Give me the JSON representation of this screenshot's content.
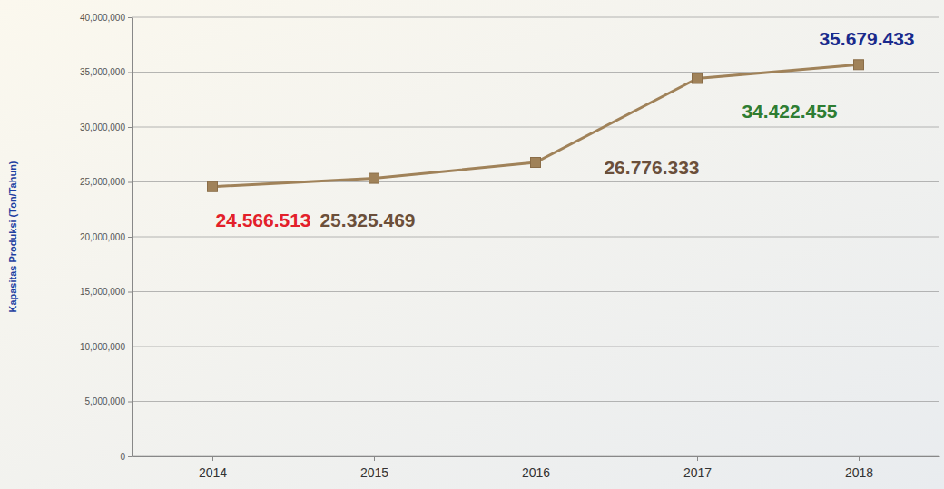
{
  "chart_data": {
    "type": "line",
    "y_label": "Kapasitas Produksi (Ton/Tahun)",
    "categories": [
      "2014",
      "2015",
      "2016",
      "2017",
      "2018"
    ],
    "values": [
      24566513,
      25325469,
      26776333,
      34422455,
      35679433
    ],
    "value_labels": [
      "24.566.513",
      "25.325.469",
      "26.776.333",
      "34.422.455",
      "35.679.433"
    ],
    "color": "#a08259",
    "marker": "square",
    "ylim": [
      0,
      40000000
    ],
    "yticks": [
      0,
      {
        "value": 5000000,
        "label": "5,000,000"
      },
      {
        "value": 10000000,
        "label": "10,000,000"
      },
      {
        "value": 15000000,
        "label": "15,000,000"
      },
      {
        "value": 20000000,
        "label": "20,000,000"
      },
      {
        "value": 25000000,
        "label": "25,000,000"
      },
      {
        "value": 30000000,
        "label": "30,000,000"
      },
      {
        "value": 35000000,
        "label": "35,000,000"
      },
      {
        "value": 40000000,
        "label": "40,000,000"
      }
    ],
    "grid": true,
    "data_labels": true
  }
}
